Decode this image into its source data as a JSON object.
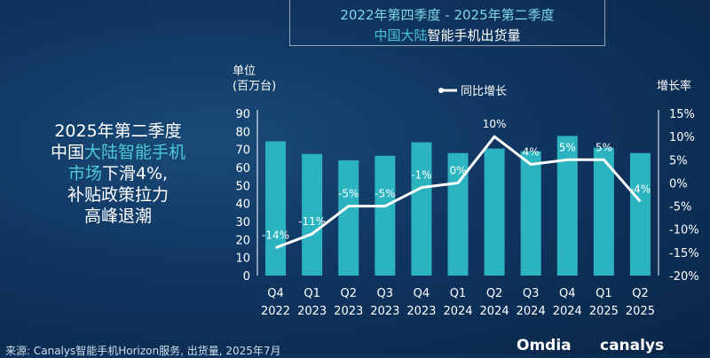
{
  "header": {
    "line1": "2022年第四季度 - 2025年第二季度",
    "line2_highlight": "中国大陆",
    "line2_rest": "智能手机出货量"
  },
  "headline": {
    "l1": "2025年第二季度",
    "l2_a": "中国",
    "l2_b": "大陆智能手机",
    "l3_a": "市场",
    "l3_b": "下滑4%,",
    "l4": "补贴政策拉力",
    "l5": "高峰退潮"
  },
  "source": "来源: Canalys智能手机Horizon服务, 出货量, 2025年7月",
  "logos": {
    "omdia": "Omdia",
    "canalys": "canalys"
  },
  "colors": {
    "bar": "#2bb3c0",
    "line": "#ffffff",
    "highlight": "#4cc9cf"
  },
  "chart_data": {
    "type": "bar",
    "ylabel_line1": "单位",
    "ylabel_line2": "(百万台)",
    "y2label": "增长率",
    "legend": "同比增长",
    "legend_position": "top-center",
    "categories": [
      [
        "Q4",
        "2022"
      ],
      [
        "Q1",
        "2023"
      ],
      [
        "Q2",
        "2023"
      ],
      [
        "Q3",
        "2023"
      ],
      [
        "Q4",
        "2023"
      ],
      [
        "Q1",
        "2024"
      ],
      [
        "Q2",
        "2024"
      ],
      [
        "Q3",
        "2024"
      ],
      [
        "Q4",
        "2024"
      ],
      [
        "Q1",
        "2025"
      ],
      [
        "Q2",
        "2025"
      ]
    ],
    "series": [
      {
        "type": "bar",
        "axis": "left",
        "values": [
          74.5,
          67.5,
          64,
          66.5,
          74,
          68,
          70.5,
          69,
          77.5,
          71,
          68
        ]
      },
      {
        "type": "line",
        "axis": "right",
        "name": "同比增长",
        "values": [
          -14,
          -11,
          -5,
          -5,
          -1,
          0,
          10,
          4,
          5,
          5,
          -4
        ],
        "labels": [
          "-14%",
          "-11%",
          "-5%",
          "-5%",
          "-1%",
          "0%",
          "10%",
          "4%",
          "5%",
          "5%",
          "-4%"
        ]
      }
    ],
    "ylim": [
      0,
      90
    ],
    "yticks": [
      0,
      10,
      20,
      30,
      40,
      50,
      60,
      70,
      80,
      90
    ],
    "y2lim": [
      -20,
      15
    ],
    "y2ticks": [
      "15%",
      "10%",
      "5%",
      "0%",
      "-5%",
      "-10%",
      "-15%",
      "-20%"
    ],
    "y2tick_values": [
      15,
      10,
      5,
      0,
      -5,
      -10,
      -15,
      -20
    ],
    "grid": false
  }
}
